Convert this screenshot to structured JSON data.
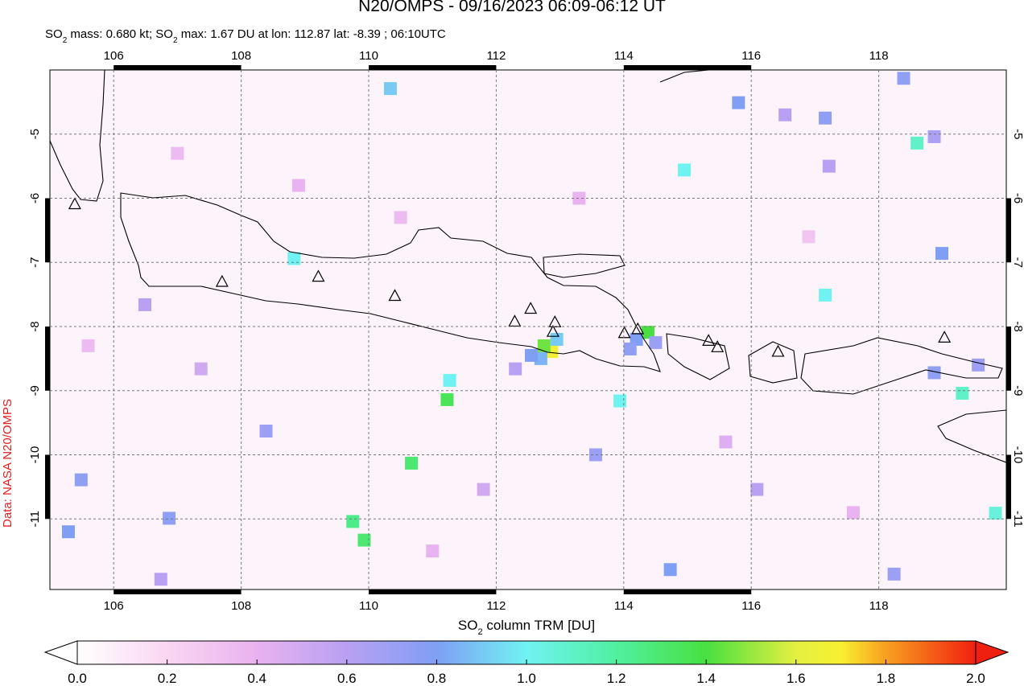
{
  "title": "N20/OMPS - 09/16/2023 06:09-06:12 UT",
  "subtitle": [
    "SO",
    "2",
    " mass: 0.680 kt; SO",
    "2",
    " max: 1.67 DU at lon: 112.87 lat: -8.39 ; 06:10UTC"
  ],
  "credit": "Data: NASA N20/OMPS",
  "map": {
    "xlim": [
      105,
      120
    ],
    "ylim": [
      -12.1,
      -4
    ],
    "xticks": [
      106,
      108,
      110,
      112,
      114,
      116,
      118
    ],
    "yticks": [
      -5,
      -6,
      -7,
      -8,
      -9,
      -10,
      -11
    ],
    "grid": true,
    "volcanoes": [
      [
        105.39,
        -6.1
      ],
      [
        107.7,
        -7.31
      ],
      [
        109.21,
        -7.23
      ],
      [
        110.41,
        -7.53
      ],
      [
        112.29,
        -7.93
      ],
      [
        112.54,
        -7.73
      ],
      [
        112.92,
        -7.94
      ],
      [
        112.89,
        -8.09
      ],
      [
        114.01,
        -8.11
      ],
      [
        114.22,
        -8.05
      ],
      [
        115.33,
        -8.23
      ],
      [
        115.47,
        -8.33
      ],
      [
        116.42,
        -8.4
      ],
      [
        119.03,
        -8.18
      ]
    ],
    "so2_pixels": [
      [
        112.87,
        -8.39,
        1.67
      ],
      [
        112.75,
        -8.3,
        1.45
      ],
      [
        112.95,
        -8.2,
        0.9
      ],
      [
        112.7,
        -8.5,
        0.85
      ],
      [
        112.55,
        -8.45,
        0.8
      ],
      [
        114.38,
        -8.09,
        1.4
      ],
      [
        114.2,
        -8.2,
        0.8
      ],
      [
        114.1,
        -8.35,
        0.75
      ],
      [
        114.5,
        -8.25,
        0.7
      ],
      [
        111.23,
        -9.14,
        1.35
      ],
      [
        110.67,
        -10.13,
        1.3
      ],
      [
        109.93,
        -11.33,
        1.3
      ],
      [
        109.75,
        -11.04,
        1.25
      ],
      [
        118.6,
        -5.14,
        1.1
      ],
      [
        114.95,
        -5.56,
        1.0
      ],
      [
        119.31,
        -9.04,
        1.1
      ],
      [
        119.83,
        -10.91,
        1.05
      ],
      [
        111.27,
        -8.84,
        1.0
      ],
      [
        113.94,
        -9.16,
        1.0
      ],
      [
        108.83,
        -6.94,
        1.0
      ],
      [
        117.16,
        -7.51,
        1.0
      ],
      [
        110.34,
        -4.29,
        0.9
      ],
      [
        115.8,
        -4.51,
        0.8
      ],
      [
        118.39,
        -4.13,
        0.75
      ],
      [
        116.53,
        -4.7,
        0.6
      ],
      [
        117.16,
        -4.75,
        0.75
      ],
      [
        118.99,
        -6.86,
        0.8
      ],
      [
        117.22,
        -5.5,
        0.6
      ],
      [
        116.09,
        -10.54,
        0.6
      ],
      [
        106.87,
        -10.99,
        0.75
      ],
      [
        105.29,
        -11.2,
        0.8
      ],
      [
        105.49,
        -10.39,
        0.75
      ],
      [
        108.39,
        -9.63,
        0.7
      ],
      [
        106.74,
        -11.94,
        0.6
      ],
      [
        114.73,
        -11.79,
        0.8
      ],
      [
        118.24,
        -11.86,
        0.7
      ],
      [
        113.56,
        -10.0,
        0.7
      ],
      [
        119.56,
        -8.6,
        0.7
      ],
      [
        118.87,
        -8.72,
        0.75
      ],
      [
        107.37,
        -8.66,
        0.5
      ],
      [
        111.8,
        -10.54,
        0.5
      ],
      [
        112.3,
        -8.66,
        0.6
      ],
      [
        118.87,
        -5.04,
        0.65
      ],
      [
        106.49,
        -7.66,
        0.6
      ],
      [
        108.9,
        -5.8,
        0.4
      ],
      [
        110.5,
        -6.3,
        0.35
      ],
      [
        113.3,
        -6.0,
        0.4
      ],
      [
        115.6,
        -9.8,
        0.45
      ],
      [
        117.6,
        -10.9,
        0.4
      ],
      [
        107.0,
        -5.3,
        0.35
      ],
      [
        111.0,
        -11.5,
        0.4
      ],
      [
        116.9,
        -6.6,
        0.3
      ],
      [
        105.6,
        -8.3,
        0.35
      ]
    ]
  },
  "colorbar": {
    "label": [
      "SO",
      "2",
      " column TRM [DU]"
    ],
    "range": [
      0,
      2
    ],
    "ticks": [
      {
        "value": 0,
        "label": "0.0"
      },
      {
        "value": 0.2,
        "label": "0.2"
      },
      {
        "value": 0.4,
        "label": "0.4"
      },
      {
        "value": 0.6,
        "label": "0.6"
      },
      {
        "value": 0.8,
        "label": "0.8"
      },
      {
        "value": 1,
        "label": "1.0"
      },
      {
        "value": 1.2,
        "label": "1.2"
      },
      {
        "value": 1.4,
        "label": "1.4"
      },
      {
        "value": 1.6,
        "label": "1.6"
      },
      {
        "value": 1.8,
        "label": "1.8"
      },
      {
        "value": 2,
        "label": "2.0"
      }
    ]
  }
}
